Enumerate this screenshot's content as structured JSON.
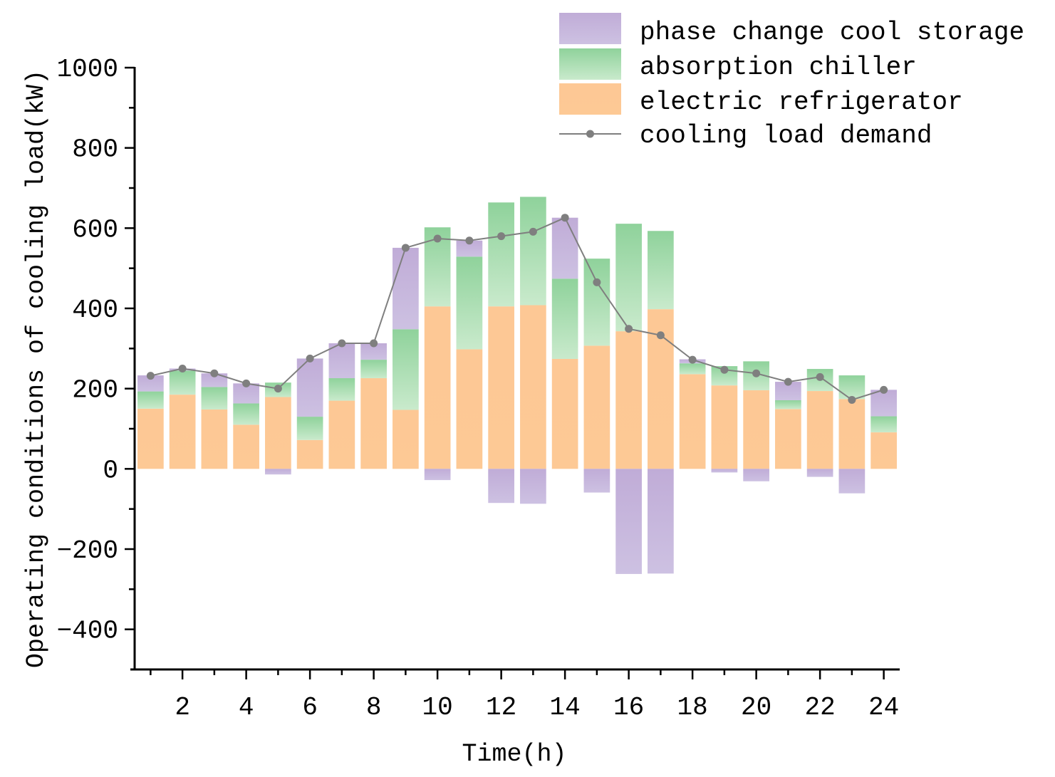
{
  "chart_data": {
    "type": "bar",
    "title": "",
    "xlabel": "Time(h)",
    "ylabel": "Operating conditions of cooling load(kW)",
    "xlim": [
      0.5,
      24.5
    ],
    "ylim": [
      -500,
      1000
    ],
    "grid": false,
    "x": [
      1,
      2,
      3,
      4,
      5,
      6,
      7,
      8,
      9,
      10,
      11,
      12,
      13,
      14,
      15,
      16,
      17,
      18,
      19,
      20,
      21,
      22,
      23,
      24
    ],
    "x_ticks": [
      2,
      4,
      6,
      8,
      10,
      12,
      14,
      16,
      18,
      20,
      22,
      24
    ],
    "x_tick_labels": [
      "2",
      "4",
      "6",
      "8",
      "10",
      "12",
      "14",
      "16",
      "18",
      "20",
      "22",
      "24"
    ],
    "y_ticks": [
      -400,
      -200,
      0,
      200,
      400,
      600,
      800,
      1000
    ],
    "y_tick_labels": [
      "−400",
      "−200",
      "0",
      "200",
      "400",
      "600",
      "800",
      "1000"
    ],
    "series": [
      {
        "name": "phase change cool storage",
        "color": "#c6b7db",
        "gradient": [
          "#c0acd7",
          "#cdc1e2"
        ],
        "values": [
          40,
          5,
          34,
          50,
          -14,
          145,
          87,
          41,
          203,
          -28,
          40,
          -85,
          -87,
          152,
          -59,
          -262,
          -261,
          10,
          -9,
          -31,
          46,
          -20,
          -61,
          66
        ]
      },
      {
        "name": "absorption chiller",
        "color": "#a8dcb0",
        "gradient": [
          "#8fd29b",
          "#c9eacc"
        ],
        "values": [
          43,
          60,
          56,
          53,
          36,
          58,
          56,
          46,
          201,
          197,
          231,
          259,
          270,
          200,
          217,
          268,
          195,
          27,
          48,
          72,
          22,
          55,
          59,
          40
        ]
      },
      {
        "name": "electric refrigerator",
        "color": "#fdc995",
        "gradient": [
          "#fdc895",
          "#fdc995"
        ],
        "values": [
          150,
          185,
          148,
          110,
          179,
          72,
          170,
          226,
          147,
          405,
          298,
          405,
          408,
          274,
          307,
          343,
          398,
          236,
          208,
          196,
          149,
          194,
          174,
          91
        ]
      },
      {
        "name": "cooling load demand",
        "color": "#7f7f7f",
        "values": [
          232,
          250,
          238,
          213,
          200,
          275,
          313,
          313,
          551,
          574,
          569,
          580,
          591,
          626,
          465,
          349,
          333,
          272,
          247,
          238,
          217,
          229,
          172,
          197
        ]
      }
    ]
  }
}
